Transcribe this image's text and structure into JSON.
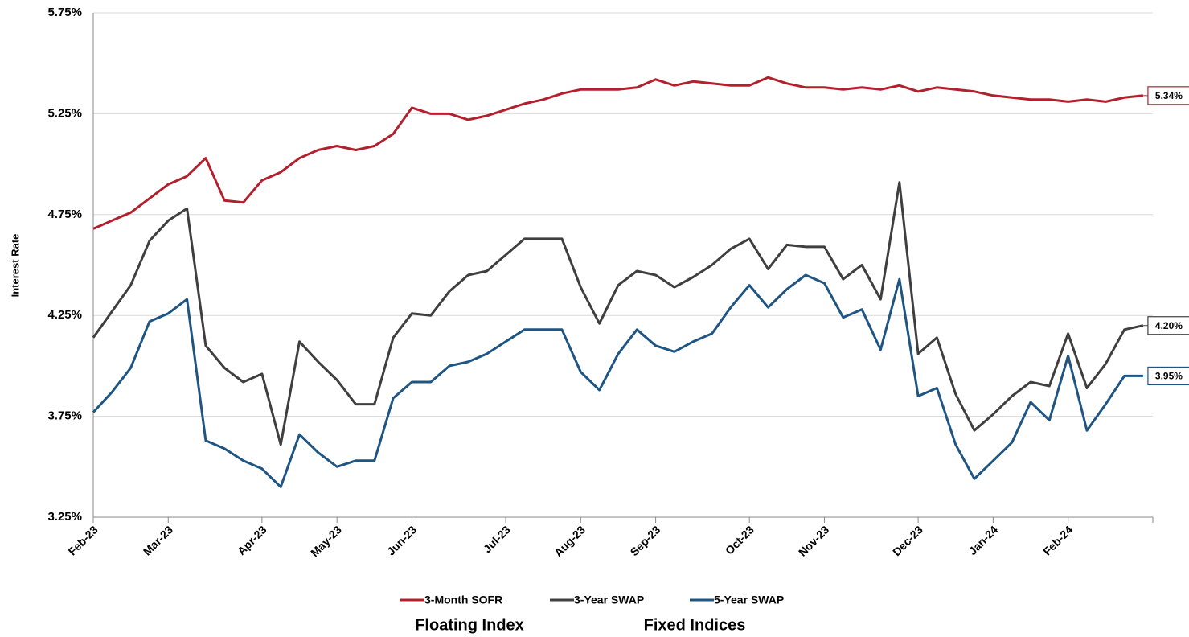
{
  "chart_data": {
    "type": "line",
    "y_label": "Interest Rate",
    "annotations": [
      "Floating Index",
      "Fixed Indices"
    ],
    "categories": [
      "Feb-23",
      null,
      null,
      null,
      "Mar-23",
      null,
      null,
      null,
      null,
      "Apr-23",
      null,
      null,
      null,
      "May-23",
      null,
      null,
      null,
      "Jun-23",
      null,
      null,
      null,
      null,
      "Jul-23",
      null,
      null,
      null,
      "Aug-23",
      null,
      null,
      null,
      "Sep-23",
      null,
      null,
      null,
      null,
      "Oct-23",
      null,
      null,
      null,
      "Nov-23",
      null,
      null,
      null,
      null,
      "Dec-23",
      null,
      null,
      null,
      "Jan-24",
      null,
      null,
      null,
      "Feb-24",
      null,
      null,
      null,
      null
    ],
    "ylim": [
      3.25,
      5.75
    ],
    "yticks": [
      {
        "value": 3.25,
        "label": "3.25%"
      },
      {
        "value": 3.75,
        "label": "3.75%"
      },
      {
        "value": 4.25,
        "label": "4.25%"
      },
      {
        "value": 4.75,
        "label": "4.75%"
      },
      {
        "value": 5.25,
        "label": "5.25%"
      },
      {
        "value": 5.75,
        "label": "5.75%"
      }
    ],
    "grid": true,
    "legend": "bottom",
    "series": [
      {
        "name": "3-Month SOFR",
        "color": "#b3202d",
        "values": [
          4.68,
          4.72,
          4.76,
          4.83,
          4.9,
          4.94,
          5.03,
          4.82,
          4.81,
          4.92,
          4.96,
          5.03,
          5.07,
          5.09,
          5.07,
          5.09,
          5.15,
          5.28,
          5.25,
          5.25,
          5.22,
          5.24,
          5.27,
          5.3,
          5.32,
          5.35,
          5.37,
          5.37,
          5.37,
          5.38,
          5.42,
          5.39,
          5.41,
          5.4,
          5.39,
          5.39,
          5.43,
          5.4,
          5.38,
          5.38,
          5.37,
          5.38,
          5.37,
          5.39,
          5.36,
          5.38,
          5.37,
          5.36,
          5.34,
          5.33,
          5.32,
          5.32,
          5.31,
          5.32,
          5.31,
          5.33,
          5.34
        ],
        "value_labels": [
          null,
          null,
          null,
          null,
          null,
          null,
          null,
          null,
          null,
          null,
          null,
          null,
          null,
          null,
          null,
          null,
          null,
          null,
          null,
          null,
          null,
          null,
          null,
          null,
          null,
          null,
          null,
          null,
          null,
          null,
          null,
          null,
          null,
          null,
          null,
          null,
          null,
          null,
          null,
          null,
          null,
          null,
          null,
          null,
          null,
          null,
          null,
          null,
          null,
          null,
          null,
          null,
          null,
          null,
          null,
          null,
          "5.34%"
        ]
      },
      {
        "name": "3-Year SWAP",
        "color": "#3f3f3f",
        "values": [
          4.14,
          4.27,
          4.4,
          4.62,
          4.72,
          4.78,
          4.1,
          3.99,
          3.92,
          3.96,
          3.61,
          4.12,
          4.02,
          3.93,
          3.81,
          3.81,
          4.14,
          4.26,
          4.25,
          4.37,
          4.45,
          4.47,
          4.55,
          4.63,
          4.63,
          4.63,
          4.39,
          4.21,
          4.4,
          4.47,
          4.45,
          4.39,
          4.44,
          4.5,
          4.58,
          4.63,
          4.48,
          4.6,
          4.59,
          4.59,
          4.43,
          4.5,
          4.33,
          4.91,
          4.06,
          4.14,
          3.86,
          3.68,
          3.76,
          3.85,
          3.92,
          3.9,
          4.16,
          3.89,
          4.01,
          4.18,
          4.2
        ],
        "value_labels": [
          null,
          null,
          null,
          null,
          null,
          null,
          null,
          null,
          null,
          null,
          null,
          null,
          null,
          null,
          null,
          null,
          null,
          null,
          null,
          null,
          null,
          null,
          null,
          null,
          null,
          null,
          null,
          null,
          null,
          null,
          null,
          null,
          null,
          null,
          null,
          null,
          null,
          null,
          null,
          null,
          null,
          null,
          null,
          null,
          null,
          null,
          null,
          null,
          null,
          null,
          null,
          null,
          null,
          null,
          null,
          null,
          "4.20%"
        ]
      },
      {
        "name": "5-Year SWAP",
        "color": "#1f5582",
        "values": [
          3.77,
          3.87,
          3.99,
          4.22,
          4.26,
          4.33,
          3.63,
          3.59,
          3.53,
          3.49,
          3.4,
          3.66,
          3.57,
          3.5,
          3.53,
          3.53,
          3.84,
          3.92,
          3.92,
          4.0,
          4.02,
          4.06,
          4.12,
          4.18,
          4.18,
          4.18,
          3.97,
          3.88,
          4.06,
          4.18,
          4.1,
          4.07,
          4.12,
          4.16,
          4.29,
          4.4,
          4.29,
          4.38,
          4.45,
          4.41,
          4.24,
          4.28,
          4.08,
          4.43,
          3.85,
          3.89,
          3.61,
          3.44,
          3.53,
          3.62,
          3.82,
          3.73,
          4.05,
          3.68,
          3.81,
          3.95,
          3.95
        ],
        "value_labels": [
          null,
          null,
          null,
          null,
          null,
          null,
          null,
          null,
          null,
          null,
          null,
          null,
          null,
          null,
          null,
          null,
          null,
          null,
          null,
          null,
          null,
          null,
          null,
          null,
          null,
          null,
          null,
          null,
          null,
          null,
          null,
          null,
          null,
          null,
          null,
          null,
          null,
          null,
          null,
          null,
          null,
          null,
          null,
          null,
          null,
          null,
          null,
          null,
          null,
          null,
          null,
          null,
          null,
          null,
          null,
          null,
          "3.95%"
        ]
      }
    ]
  }
}
